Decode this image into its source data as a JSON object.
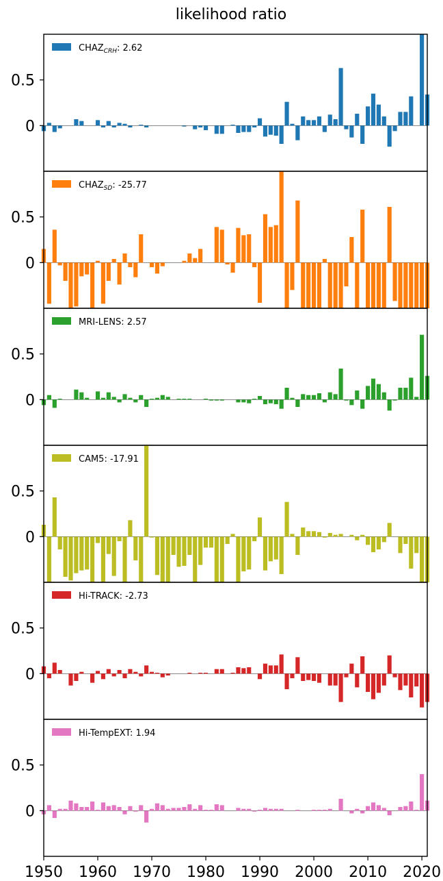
{
  "figure": {
    "title": "likelihood ratio"
  },
  "chart_data": {
    "type": "bar",
    "x": [
      1950,
      1951,
      1952,
      1953,
      1954,
      1955,
      1956,
      1957,
      1958,
      1959,
      1960,
      1961,
      1962,
      1963,
      1964,
      1965,
      1966,
      1967,
      1968,
      1969,
      1970,
      1971,
      1972,
      1973,
      1974,
      1975,
      1976,
      1977,
      1978,
      1979,
      1980,
      1981,
      1982,
      1983,
      1984,
      1985,
      1986,
      1987,
      1988,
      1989,
      1990,
      1991,
      1992,
      1993,
      1994,
      1995,
      1996,
      1997,
      1998,
      1999,
      2000,
      2001,
      2002,
      2003,
      2004,
      2005,
      2006,
      2007,
      2008,
      2009,
      2010,
      2011,
      2012,
      2013,
      2014,
      2015,
      2016,
      2017,
      2018,
      2019,
      2020,
      2021
    ],
    "xlim": [
      1950,
      2021
    ],
    "ylim": [
      -0.5,
      1.0
    ],
    "xticks": [
      1950,
      1960,
      1970,
      1980,
      1990,
      2000,
      2010,
      2020
    ],
    "xtick_labels": [
      "1950",
      "1960",
      "1970",
      "1980",
      "1990",
      "2000",
      "2010",
      "2020"
    ],
    "yticks": [
      0,
      0.5
    ],
    "ytick_labels": [
      "0",
      "0.5"
    ],
    "grid": false,
    "legend_placement": "top-left",
    "series": [
      {
        "name": "CHAZ",
        "name_sub": "CRH",
        "score": ": 2.62",
        "color": "#1f77b4",
        "values": [
          -0.06,
          0.03,
          -0.07,
          -0.03,
          0,
          0,
          0.07,
          0.05,
          0,
          0,
          0.06,
          -0.02,
          0.05,
          -0.02,
          0.03,
          0.02,
          -0.02,
          0,
          0.01,
          -0.02,
          0,
          0,
          0,
          0,
          0,
          0,
          -0.01,
          0,
          -0.04,
          -0.02,
          -0.05,
          0,
          -0.09,
          -0.09,
          0,
          0.01,
          -0.08,
          -0.07,
          -0.07,
          -0.02,
          0.08,
          -0.12,
          -0.1,
          -0.11,
          -0.2,
          0.26,
          0.02,
          -0.16,
          0.1,
          0.06,
          0.06,
          0.1,
          -0.07,
          0.12,
          0.07,
          0.63,
          -0.04,
          -0.13,
          0.13,
          -0.2,
          0.21,
          0.35,
          0.23,
          0.1,
          -0.23,
          -0.06,
          0.15,
          0.15,
          0.32,
          0,
          1.0,
          0.34
        ]
      },
      {
        "name": "CHAZ",
        "name_sub": "SD",
        "score": ": -25.77",
        "color": "#ff7f0e",
        "values": [
          0.15,
          -0.45,
          0.36,
          -0.03,
          -0.2,
          -0.5,
          -0.48,
          -0.15,
          -0.13,
          -0.5,
          0.02,
          -0.45,
          -0.2,
          0.04,
          -0.24,
          0.1,
          -0.05,
          -0.16,
          0.31,
          0,
          -0.05,
          -0.12,
          -0.04,
          0,
          0,
          0,
          0.02,
          0.1,
          0.05,
          0.15,
          0,
          0,
          0.39,
          0.36,
          -0.02,
          -0.11,
          0.38,
          0.3,
          0.31,
          -0.05,
          -0.44,
          0.53,
          0.39,
          0.41,
          1.0,
          -0.5,
          -0.3,
          0.68,
          -0.5,
          -0.5,
          -0.5,
          -0.5,
          0.04,
          -0.5,
          -0.5,
          -0.5,
          -0.26,
          0.28,
          -0.5,
          0.58,
          -0.5,
          -0.5,
          -0.5,
          -0.5,
          0.61,
          -0.42,
          -0.5,
          -0.5,
          -0.5,
          -0.5,
          -0.5,
          -0.5
        ]
      },
      {
        "name": "MRI-LENS",
        "name_sub": "",
        "score": ": 2.57",
        "color": "#2ca02c",
        "values": [
          -0.06,
          0.05,
          -0.09,
          0.01,
          0,
          0,
          0.11,
          0.08,
          0.02,
          0,
          0.09,
          0.02,
          0.08,
          0.03,
          -0.03,
          0.06,
          0.02,
          -0.03,
          0.05,
          -0.08,
          0.01,
          0.02,
          0.05,
          0.03,
          0,
          0.01,
          0.01,
          0.01,
          0,
          0,
          0.01,
          -0.01,
          -0.01,
          -0.01,
          0,
          0,
          -0.03,
          -0.03,
          -0.04,
          0.01,
          0.04,
          -0.05,
          -0.04,
          -0.05,
          -0.1,
          0.13,
          0.02,
          -0.08,
          0.06,
          0.05,
          0.05,
          0.07,
          -0.03,
          0.08,
          0.06,
          0.34,
          -0.01,
          -0.06,
          0.1,
          -0.1,
          0.15,
          0.23,
          0.17,
          0.08,
          -0.12,
          -0.01,
          0.13,
          0.13,
          0.24,
          0.03,
          0.71,
          0.26
        ]
      },
      {
        "name": "CAM5",
        "name_sub": "",
        "score": ": -17.91",
        "color": "#bcbd22",
        "values": [
          0.13,
          -0.5,
          0.43,
          -0.14,
          -0.44,
          -0.48,
          -0.4,
          -0.37,
          -0.36,
          -0.5,
          -0.07,
          -0.5,
          -0.19,
          -0.43,
          -0.05,
          -0.5,
          0.18,
          -0.26,
          -0.5,
          1.0,
          -0.01,
          -0.42,
          -0.5,
          -0.5,
          -0.2,
          -0.33,
          -0.32,
          -0.2,
          -0.5,
          -0.31,
          -0.12,
          -0.12,
          -0.5,
          -0.5,
          -0.08,
          0.03,
          -0.5,
          -0.38,
          -0.36,
          -0.05,
          0.21,
          -0.37,
          -0.27,
          -0.25,
          -0.41,
          0.38,
          0.03,
          -0.2,
          0.1,
          0.06,
          0.06,
          0.05,
          -0.01,
          0.04,
          0.02,
          0.03,
          0,
          0.02,
          -0.04,
          0.02,
          -0.09,
          -0.17,
          -0.14,
          -0.06,
          0.15,
          0,
          -0.18,
          -0.08,
          -0.35,
          -0.18,
          -0.5,
          -0.5
        ]
      },
      {
        "name": "Hi-TRACK",
        "name_sub": "",
        "score": ": -2.73",
        "color": "#d62728",
        "values": [
          0.08,
          -0.05,
          0.12,
          0.04,
          0,
          -0.13,
          -0.08,
          0.02,
          0,
          -0.1,
          0.03,
          -0.06,
          0.05,
          -0.03,
          0.04,
          -0.05,
          0.05,
          0.02,
          -0.03,
          0.09,
          0.02,
          0.01,
          -0.04,
          -0.02,
          0,
          0,
          0,
          0.01,
          0,
          0.01,
          0.01,
          0,
          0.05,
          0.05,
          0,
          0.01,
          0.07,
          0.06,
          0.07,
          0,
          -0.06,
          0.11,
          0.09,
          0.09,
          0.21,
          -0.17,
          -0.05,
          0.18,
          -0.08,
          -0.07,
          -0.08,
          -0.1,
          0,
          -0.13,
          -0.13,
          -0.31,
          -0.04,
          0.11,
          -0.15,
          0.19,
          -0.2,
          -0.28,
          -0.21,
          -0.13,
          0.2,
          -0.04,
          -0.18,
          -0.13,
          -0.26,
          -0.14,
          -0.37,
          -0.31
        ]
      },
      {
        "name": "Hi-TempEXT",
        "name_sub": "",
        "score": ": 1.94",
        "color": "#e377c2",
        "values": [
          -0.04,
          0.06,
          -0.08,
          0.02,
          0.02,
          0.11,
          0.08,
          0.04,
          0.04,
          0.1,
          0.01,
          0.09,
          0.05,
          0.06,
          0.04,
          -0.04,
          0.05,
          -0.01,
          0.06,
          -0.13,
          0.02,
          0.08,
          0.06,
          0.02,
          0.03,
          0.03,
          0.04,
          0.07,
          0.02,
          0.06,
          0.01,
          0.01,
          0.07,
          0.06,
          0,
          0,
          0.03,
          0.02,
          0.02,
          -0.01,
          0.01,
          0.03,
          0.02,
          0.02,
          0.02,
          0,
          0,
          0.01,
          0,
          0,
          0.01,
          0.01,
          0.01,
          0.02,
          0,
          0.13,
          0,
          -0.03,
          0.02,
          -0.03,
          0.05,
          0.09,
          0.06,
          0.03,
          -0.05,
          0,
          0.04,
          0.05,
          0.1,
          0.01,
          0.4,
          0.11
        ]
      }
    ]
  }
}
